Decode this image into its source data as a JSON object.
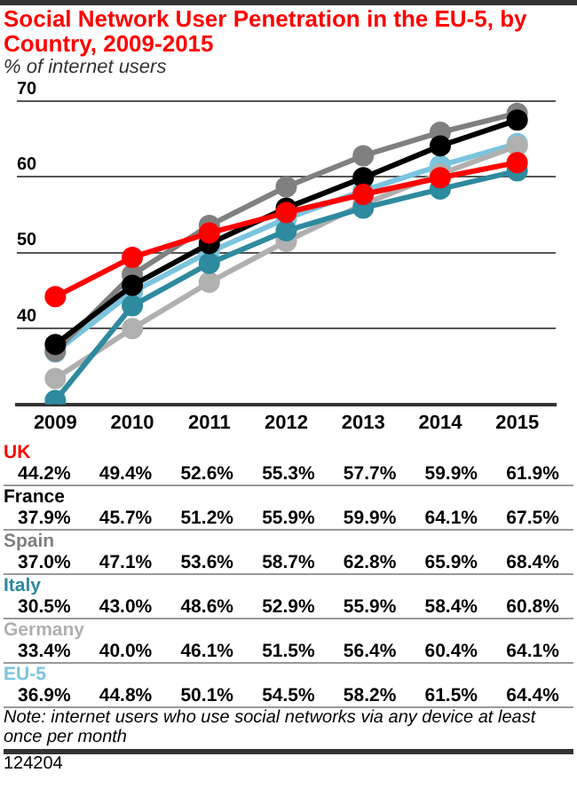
{
  "chart_data": {
    "type": "line",
    "title": "Social Network User Penetration in the EU-5, by Country, 2009-2015",
    "subtitle": "% of internet users",
    "categories": [
      "2009",
      "2010",
      "2011",
      "2012",
      "2013",
      "2014",
      "2015"
    ],
    "series": [
      {
        "name": "UK",
        "color": "#ff0000",
        "values": [
          44.2,
          49.4,
          52.6,
          55.3,
          57.7,
          59.9,
          61.9
        ],
        "value_labels": [
          "44.2%",
          "49.4%",
          "52.6%",
          "55.3%",
          "57.7%",
          "59.9%",
          "61.9%"
        ]
      },
      {
        "name": "France",
        "color": "#000000",
        "values": [
          37.9,
          45.7,
          51.2,
          55.9,
          59.9,
          64.1,
          67.5
        ],
        "value_labels": [
          "37.9%",
          "45.7%",
          "51.2%",
          "55.9%",
          "59.9%",
          "64.1%",
          "67.5%"
        ]
      },
      {
        "name": "Spain",
        "color": "#808080",
        "values": [
          37.0,
          47.1,
          53.6,
          58.7,
          62.8,
          65.9,
          68.4
        ],
        "value_labels": [
          "37.0%",
          "47.1%",
          "53.6%",
          "58.7%",
          "62.8%",
          "65.9%",
          "68.4%"
        ]
      },
      {
        "name": "Italy",
        "color": "#2e8a9e",
        "values": [
          30.5,
          43.0,
          48.6,
          52.9,
          55.9,
          58.4,
          60.8
        ],
        "value_labels": [
          "30.5%",
          "43.0%",
          "48.6%",
          "52.9%",
          "55.9%",
          "58.4%",
          "60.8%"
        ]
      },
      {
        "name": "Germany",
        "color": "#b0b0b0",
        "values": [
          33.4,
          40.0,
          46.1,
          51.5,
          56.4,
          60.4,
          64.1
        ],
        "value_labels": [
          "33.4%",
          "40.0%",
          "46.1%",
          "51.5%",
          "56.4%",
          "60.4%",
          "64.1%"
        ]
      },
      {
        "name": "EU-5",
        "color": "#7ac4de",
        "values": [
          36.9,
          44.8,
          50.1,
          54.5,
          58.2,
          61.5,
          64.4
        ],
        "value_labels": [
          "36.9%",
          "44.8%",
          "50.1%",
          "54.5%",
          "58.2%",
          "61.5%",
          "64.4%"
        ]
      }
    ],
    "ylim": [
      30,
      70
    ],
    "yticks": [
      {
        "value": 30,
        "label": null
      },
      40,
      50,
      60,
      70
    ],
    "grid": "y",
    "legend": false,
    "marker": "circle",
    "line_style": "solid",
    "annotations": [
      "Note: internet users who use social networks via any device at least once per month",
      "124204"
    ]
  }
}
